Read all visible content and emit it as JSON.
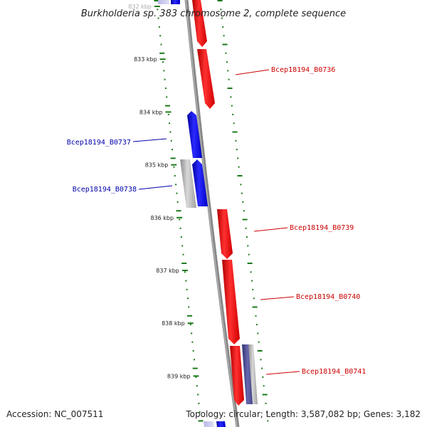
{
  "header": {
    "title": "Burkholderia sp. 383 chromosome 2, complete sequence"
  },
  "footer": {
    "accession": "Accession: NC_007511",
    "summary": "Topology: circular; Length: 3,587,082 bp; Genes: 3,182"
  },
  "colors": {
    "forward_cds": "#ff0000",
    "reverse_cds": "#0000ff",
    "gene": "#aaaaaa",
    "backbone": "#888888",
    "dot_track": "#1a7a1a",
    "forward_label": "#cc0000",
    "reverse_label": "#0000aa"
  },
  "ticks": [
    {
      "label": "832 kbp",
      "kbp": 832
    },
    {
      "label": "833 kbp",
      "kbp": 833
    },
    {
      "label": "834 kbp",
      "kbp": 834
    },
    {
      "label": "835 kbp",
      "kbp": 835
    },
    {
      "label": "836 kbp",
      "kbp": 836
    },
    {
      "label": "837 kbp",
      "kbp": 837
    },
    {
      "label": "838 kbp",
      "kbp": 838
    },
    {
      "label": "839 kbp",
      "kbp": 839
    }
  ],
  "features": [
    {
      "name": "Bcep18194_B0736",
      "strand": "forward",
      "label": "Bcep18194_B0736"
    },
    {
      "name": "Bcep18194_B0737",
      "strand": "reverse",
      "label": "Bcep18194_B0737"
    },
    {
      "name": "Bcep18194_B0738",
      "strand": "reverse",
      "label": "Bcep18194_B0738"
    },
    {
      "name": "Bcep18194_B0739",
      "strand": "forward",
      "label": "Bcep18194_B0739"
    },
    {
      "name": "Bcep18194_B0740",
      "strand": "forward",
      "label": "Bcep18194_B0740"
    },
    {
      "name": "Bcep18194_B0741",
      "strand": "forward",
      "label": "Bcep18194_B0741"
    }
  ]
}
